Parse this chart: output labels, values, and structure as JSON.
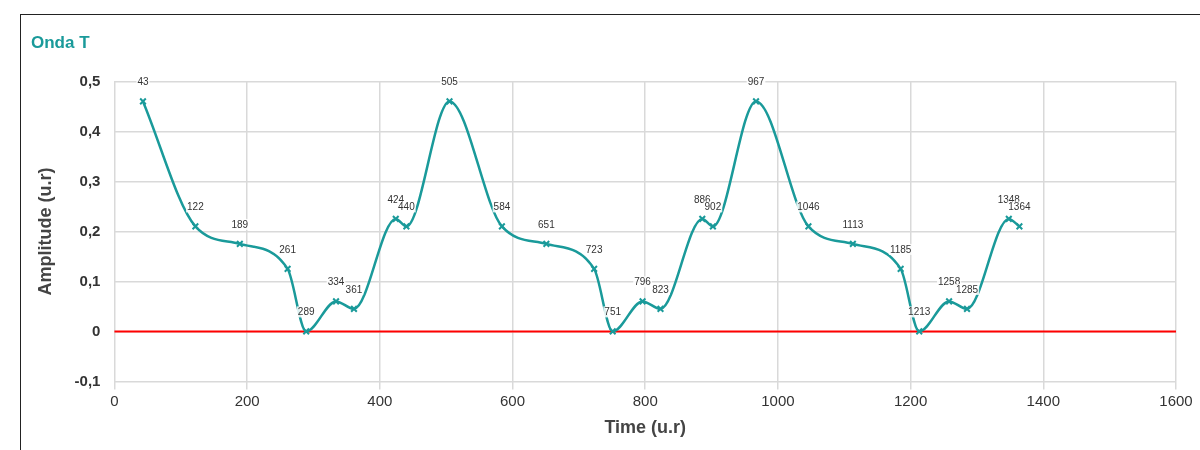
{
  "chart_data": {
    "type": "line",
    "title": "Onda T",
    "xlabel": "Time (u.r)",
    "ylabel": "Amplitude (u.r)",
    "x": [
      43,
      122,
      189,
      261,
      289,
      334,
      361,
      424,
      440,
      505,
      584,
      651,
      723,
      751,
      796,
      823,
      886,
      902,
      967,
      1046,
      1113,
      1185,
      1213,
      1258,
      1285,
      1348,
      1364
    ],
    "series": [
      {
        "color": "#1a9a9a",
        "values": [
          0.46,
          0.21,
          0.175,
          0.125,
          0.0,
          0.06,
          0.045,
          0.225,
          0.21,
          0.46,
          0.21,
          0.175,
          0.125,
          0.0,
          0.06,
          0.045,
          0.225,
          0.21,
          0.46,
          0.21,
          0.175,
          0.125,
          0.0,
          0.06,
          0.045,
          0.225,
          0.21
        ]
      }
    ],
    "annotations": [
      {
        "text": "43",
        "x": 43,
        "y": 0.46
      },
      {
        "text": "122",
        "x": 122,
        "y": 0.21
      },
      {
        "text": "189",
        "x": 189,
        "y": 0.175
      },
      {
        "text": "261",
        "x": 261,
        "y": 0.125
      },
      {
        "text": "289",
        "x": 289,
        "y": 0.0
      },
      {
        "text": "334",
        "x": 334,
        "y": 0.06
      },
      {
        "text": "361",
        "x": 361,
        "y": 0.045
      },
      {
        "text": "424",
        "x": 424,
        "y": 0.225
      },
      {
        "text": "440",
        "x": 440,
        "y": 0.21
      },
      {
        "text": "505",
        "x": 505,
        "y": 0.46
      },
      {
        "text": "584",
        "x": 584,
        "y": 0.21
      },
      {
        "text": "651",
        "x": 651,
        "y": 0.175
      },
      {
        "text": "723",
        "x": 723,
        "y": 0.125
      },
      {
        "text": "751",
        "x": 751,
        "y": 0.0
      },
      {
        "text": "796",
        "x": 796,
        "y": 0.06
      },
      {
        "text": "823",
        "x": 823,
        "y": 0.045
      },
      {
        "text": "886",
        "x": 886,
        "y": 0.225
      },
      {
        "text": "902",
        "x": 902,
        "y": 0.21
      },
      {
        "text": "967",
        "x": 967,
        "y": 0.46
      },
      {
        "text": "1046",
        "x": 1046,
        "y": 0.21
      },
      {
        "text": "1113",
        "x": 1113,
        "y": 0.175
      },
      {
        "text": "1185",
        "x": 1185,
        "y": 0.125
      },
      {
        "text": "1213",
        "x": 1213,
        "y": 0.0
      },
      {
        "text": "1258",
        "x": 1258,
        "y": 0.06
      },
      {
        "text": "1285",
        "x": 1285,
        "y": 0.045
      },
      {
        "text": "1348",
        "x": 1348,
        "y": 0.225
      },
      {
        "text": "1364",
        "x": 1364,
        "y": 0.21
      }
    ],
    "xlim": [
      0,
      1600
    ],
    "xticks": [
      0,
      200,
      400,
      600,
      800,
      1000,
      1200,
      1400,
      1600
    ],
    "ylim": [
      -0.1,
      0.5
    ],
    "yticks": [
      {
        "value": -0.1,
        "label": "-0,1"
      },
      {
        "value": 0,
        "label": "0"
      },
      {
        "value": 0.1,
        "label": "0,1"
      },
      {
        "value": 0.2,
        "label": "0,2"
      },
      {
        "value": 0.3,
        "label": "0,3"
      },
      {
        "value": 0.4,
        "label": "0,4"
      },
      {
        "value": 0.5,
        "label": "0,5"
      }
    ],
    "ref_lines": [
      {
        "axis": "y",
        "value": 0,
        "color": "#ff0000"
      }
    ],
    "grid": true,
    "marker": "cross",
    "line_style": "solid",
    "legend": false
  }
}
